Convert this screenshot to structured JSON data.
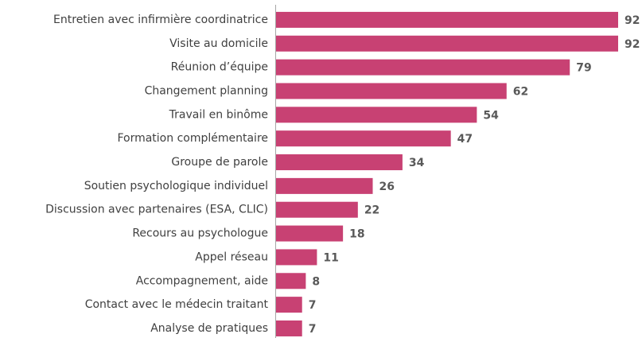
{
  "chart_data": {
    "type": "barh",
    "categories": [
      "Entretien avec infirmière coordinatrice",
      "Visite au domicile",
      "Réunion d’équipe",
      "Changement planning",
      "Travail en binôme",
      "Formation complémentaire",
      "Groupe de parole",
      "Soutien psychologique individuel",
      "Discussion avec partenaires (ESA, CLIC)",
      "Recours au psychologue",
      "Appel réseau",
      "Accompagnement, aide",
      "Contact avec le médecin traitant",
      "Analyse de pratiques"
    ],
    "values": [
      92,
      92,
      79,
      62,
      54,
      47,
      34,
      26,
      22,
      18,
      11,
      8,
      7,
      7
    ],
    "color": "#c84173"
  }
}
